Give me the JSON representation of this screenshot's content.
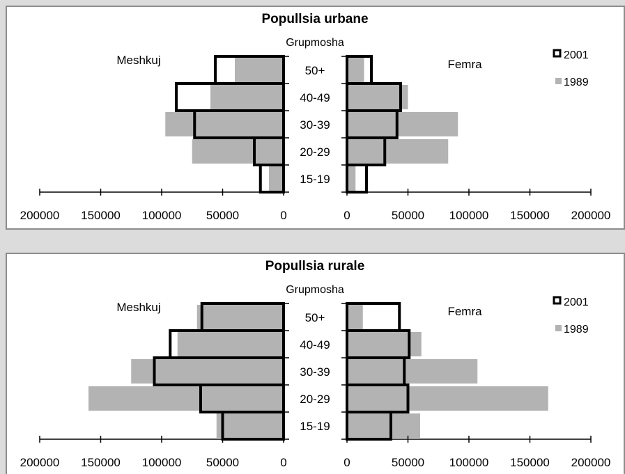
{
  "chart_data": [
    {
      "type": "bar",
      "title": "Popullsia urbane",
      "center_label": "Grupmosha",
      "left_label": "Meshkuj",
      "right_label": "Femra",
      "categories": [
        "50+",
        "40-49",
        "30-39",
        "20-29",
        "15-19"
      ],
      "legend": [
        {
          "name": "2001",
          "style": "outline",
          "color": "#000000"
        },
        {
          "name": "1989",
          "style": "fill",
          "color": "#b3b3b3"
        }
      ],
      "legend_position": "top-right",
      "xlim": [
        0,
        200000
      ],
      "left_ticks": [
        "200000",
        "150000",
        "100000",
        "50000",
        "0"
      ],
      "right_ticks": [
        "0",
        "50000",
        "100000",
        "150000",
        "200000"
      ],
      "series": [
        {
          "name": "1989",
          "male": [
            40000,
            60000,
            97000,
            75000,
            12000
          ],
          "female": [
            14000,
            50000,
            91000,
            83000,
            7000
          ]
        },
        {
          "name": "2001",
          "male": [
            56000,
            88000,
            73000,
            24000,
            19000
          ],
          "female": [
            20000,
            44000,
            41000,
            31000,
            16000
          ]
        }
      ]
    },
    {
      "type": "bar",
      "title": "Popullsia rurale",
      "center_label": "Grupmosha",
      "left_label": "Meshkuj",
      "right_label": "Femra",
      "categories": [
        "50+",
        "40-49",
        "30-39",
        "20-29",
        "15-19"
      ],
      "legend": [
        {
          "name": "2001",
          "style": "outline",
          "color": "#000000"
        },
        {
          "name": "1989",
          "style": "fill",
          "color": "#b3b3b3"
        }
      ],
      "legend_position": "top-right",
      "xlim": [
        0,
        200000
      ],
      "left_ticks": [
        "200000",
        "150000",
        "100000",
        "50000",
        "0"
      ],
      "right_ticks": [
        "0",
        "50000",
        "100000",
        "150000",
        "200000"
      ],
      "series": [
        {
          "name": "1989",
          "male": [
            71000,
            87000,
            125000,
            160000,
            55000
          ],
          "female": [
            13000,
            61000,
            107000,
            165000,
            60000
          ]
        },
        {
          "name": "2001",
          "male": [
            67000,
            93000,
            106000,
            68000,
            50000
          ],
          "female": [
            43000,
            51000,
            47000,
            50000,
            36000
          ]
        }
      ]
    }
  ]
}
